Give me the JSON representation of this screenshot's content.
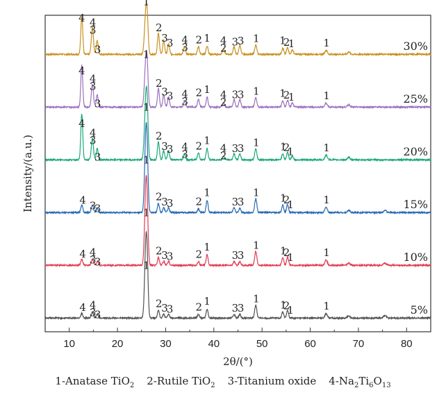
{
  "chart_data": {
    "type": "line",
    "title": "",
    "xlabel": "2θ/(°)",
    "ylabel": "Intensity/(a.u.)",
    "xlim": [
      5,
      85
    ],
    "x_ticks": [
      10,
      20,
      30,
      40,
      50,
      60,
      70,
      80
    ],
    "y_ticks_shown": false,
    "stacked_offset": true,
    "series": [
      {
        "name": "30%",
        "color": "#c8901e",
        "baseline": 0.06,
        "scale": 1.0,
        "peaks": [
          [
            12.6,
            0.5,
            0.2
          ],
          [
            14.8,
            0.35,
            0.22
          ],
          [
            15.8,
            0.18,
            0.2
          ],
          [
            25.9,
            0.55,
            0.28
          ],
          [
            26.2,
            0.25,
            0.2
          ],
          [
            28.5,
            0.28,
            0.2
          ],
          [
            29.6,
            0.18,
            0.2
          ],
          [
            30.6,
            0.14,
            0.2
          ],
          [
            33.9,
            0.1,
            0.2
          ],
          [
            36.8,
            0.1,
            0.2
          ],
          [
            38.6,
            0.11,
            0.2
          ],
          [
            42.0,
            0.08,
            0.2
          ],
          [
            44.2,
            0.1,
            0.2
          ],
          [
            45.4,
            0.12,
            0.2
          ],
          [
            48.7,
            0.12,
            0.22
          ],
          [
            54.3,
            0.08,
            0.2
          ],
          [
            55.3,
            0.09,
            0.2
          ],
          [
            56.3,
            0.06,
            0.2
          ],
          [
            63.3,
            0.05,
            0.25
          ],
          [
            68.0,
            0.03,
            0.25
          ]
        ]
      },
      {
        "name": "25%",
        "color": "#9b6fbf",
        "baseline": 0.06,
        "scale": 1.0,
        "peaks": [
          [
            12.6,
            0.55,
            0.2
          ],
          [
            14.8,
            0.3,
            0.22
          ],
          [
            15.8,
            0.16,
            0.2
          ],
          [
            25.9,
            0.6,
            0.28
          ],
          [
            26.2,
            0.28,
            0.2
          ],
          [
            28.5,
            0.24,
            0.2
          ],
          [
            29.6,
            0.16,
            0.2
          ],
          [
            30.6,
            0.13,
            0.2
          ],
          [
            33.9,
            0.08,
            0.2
          ],
          [
            36.8,
            0.1,
            0.2
          ],
          [
            38.6,
            0.13,
            0.2
          ],
          [
            42.0,
            0.06,
            0.2
          ],
          [
            44.2,
            0.1,
            0.2
          ],
          [
            45.4,
            0.1,
            0.2
          ],
          [
            48.7,
            0.12,
            0.22
          ],
          [
            54.3,
            0.08,
            0.2
          ],
          [
            55.3,
            0.09,
            0.2
          ],
          [
            56.3,
            0.05,
            0.2
          ],
          [
            63.3,
            0.05,
            0.25
          ],
          [
            68.0,
            0.03,
            0.25
          ]
        ]
      },
      {
        "name": "20%",
        "color": "#1aa878",
        "baseline": 0.06,
        "scale": 1.0,
        "peaks": [
          [
            12.6,
            0.6,
            0.2
          ],
          [
            14.8,
            0.28,
            0.22
          ],
          [
            15.8,
            0.15,
            0.2
          ],
          [
            25.9,
            0.8,
            0.28
          ],
          [
            26.2,
            0.35,
            0.2
          ],
          [
            28.5,
            0.24,
            0.2
          ],
          [
            29.6,
            0.12,
            0.2
          ],
          [
            30.6,
            0.12,
            0.2
          ],
          [
            33.9,
            0.08,
            0.2
          ],
          [
            36.8,
            0.09,
            0.2
          ],
          [
            38.6,
            0.15,
            0.2
          ],
          [
            42.0,
            0.05,
            0.2
          ],
          [
            44.2,
            0.08,
            0.2
          ],
          [
            45.4,
            0.08,
            0.2
          ],
          [
            48.7,
            0.14,
            0.22
          ],
          [
            54.3,
            0.08,
            0.2
          ],
          [
            55.3,
            0.1,
            0.2
          ],
          [
            56.3,
            0.05,
            0.2
          ],
          [
            63.3,
            0.06,
            0.25
          ],
          [
            68.0,
            0.03,
            0.25
          ]
        ]
      },
      {
        "name": "15%",
        "color": "#2468b4",
        "baseline": 0.06,
        "scale": 1.0,
        "peaks": [
          [
            12.6,
            0.1,
            0.2
          ],
          [
            14.8,
            0.1,
            0.22
          ],
          [
            15.8,
            0.06,
            0.2
          ],
          [
            25.9,
            1.0,
            0.26
          ],
          [
            26.2,
            0.4,
            0.2
          ],
          [
            28.5,
            0.12,
            0.2
          ],
          [
            29.6,
            0.06,
            0.2
          ],
          [
            30.6,
            0.06,
            0.2
          ],
          [
            36.8,
            0.05,
            0.2
          ],
          [
            38.6,
            0.16,
            0.2
          ],
          [
            44.2,
            0.06,
            0.2
          ],
          [
            45.4,
            0.06,
            0.2
          ],
          [
            48.7,
            0.18,
            0.22
          ],
          [
            54.3,
            0.1,
            0.2
          ],
          [
            55.3,
            0.11,
            0.2
          ],
          [
            63.3,
            0.07,
            0.25
          ],
          [
            68.0,
            0.03,
            0.25
          ],
          [
            75.5,
            0.03,
            0.3
          ]
        ]
      },
      {
        "name": "10%",
        "color": "#e23a50",
        "baseline": 0.06,
        "scale": 1.0,
        "peaks": [
          [
            12.6,
            0.08,
            0.2
          ],
          [
            14.8,
            0.08,
            0.22
          ],
          [
            15.8,
            0.05,
            0.2
          ],
          [
            25.9,
            1.0,
            0.26
          ],
          [
            26.2,
            0.4,
            0.2
          ],
          [
            28.5,
            0.1,
            0.2
          ],
          [
            29.6,
            0.05,
            0.2
          ],
          [
            30.6,
            0.05,
            0.2
          ],
          [
            36.8,
            0.05,
            0.2
          ],
          [
            38.6,
            0.14,
            0.2
          ],
          [
            44.2,
            0.05,
            0.2
          ],
          [
            45.4,
            0.05,
            0.2
          ],
          [
            48.7,
            0.18,
            0.22
          ],
          [
            54.3,
            0.1,
            0.2
          ],
          [
            55.3,
            0.11,
            0.2
          ],
          [
            63.3,
            0.07,
            0.25
          ],
          [
            68.0,
            0.03,
            0.25
          ],
          [
            75.5,
            0.03,
            0.3
          ]
        ]
      },
      {
        "name": "5%",
        "color": "#505050",
        "baseline": 0.06,
        "scale": 1.0,
        "peaks": [
          [
            12.6,
            0.06,
            0.2
          ],
          [
            14.8,
            0.08,
            0.22
          ],
          [
            15.8,
            0.05,
            0.2
          ],
          [
            25.9,
            0.95,
            0.26
          ],
          [
            26.2,
            0.4,
            0.2
          ],
          [
            28.5,
            0.1,
            0.2
          ],
          [
            29.6,
            0.05,
            0.2
          ],
          [
            30.6,
            0.05,
            0.2
          ],
          [
            36.8,
            0.05,
            0.2
          ],
          [
            38.6,
            0.12,
            0.2
          ],
          [
            44.2,
            0.05,
            0.2
          ],
          [
            45.4,
            0.05,
            0.2
          ],
          [
            48.7,
            0.17,
            0.22
          ],
          [
            54.3,
            0.08,
            0.2
          ],
          [
            55.3,
            0.1,
            0.2
          ],
          [
            63.3,
            0.06,
            0.25
          ],
          [
            68.0,
            0.03,
            0.25
          ],
          [
            75.5,
            0.03,
            0.3
          ]
        ]
      }
    ],
    "peak_annotations": [
      {
        "series": "30%",
        "labels": [
          {
            "x": 12.6,
            "text": "4"
          },
          {
            "x": 14.9,
            "text": "4"
          },
          {
            "x": 14.9,
            "text": "3",
            "row": 1
          },
          {
            "x": 15.9,
            "text": "3",
            "row": 2
          },
          {
            "x": 26.0,
            "text": "1"
          },
          {
            "x": 28.6,
            "text": "2"
          },
          {
            "x": 29.8,
            "text": "3"
          },
          {
            "x": 30.9,
            "text": "3"
          },
          {
            "x": 34.0,
            "text": "4"
          },
          {
            "x": 34.0,
            "text": "3",
            "row": 1
          },
          {
            "x": 36.9,
            "text": "2"
          },
          {
            "x": 38.6,
            "text": "1"
          },
          {
            "x": 42.0,
            "text": "4"
          },
          {
            "x": 42.0,
            "text": "2",
            "row": 1
          },
          {
            "x": 44.4,
            "text": "3"
          },
          {
            "x": 45.6,
            "text": "3"
          },
          {
            "x": 48.8,
            "text": "1"
          },
          {
            "x": 54.3,
            "text": "1"
          },
          {
            "x": 55.1,
            "text": "2"
          },
          {
            "x": 56.1,
            "text": "1"
          },
          {
            "x": 63.4,
            "text": "1"
          }
        ]
      },
      {
        "series": "25%",
        "labels": [
          {
            "x": 12.6,
            "text": "4"
          },
          {
            "x": 14.9,
            "text": "4"
          },
          {
            "x": 14.9,
            "text": "3",
            "row": 1
          },
          {
            "x": 15.9,
            "text": "3",
            "row": 2
          },
          {
            "x": 26.0,
            "text": "1"
          },
          {
            "x": 28.6,
            "text": "2"
          },
          {
            "x": 29.8,
            "text": "3"
          },
          {
            "x": 30.9,
            "text": "3"
          },
          {
            "x": 34.0,
            "text": "4"
          },
          {
            "x": 34.0,
            "text": "3",
            "row": 1
          },
          {
            "x": 36.9,
            "text": "2"
          },
          {
            "x": 38.6,
            "text": "1"
          },
          {
            "x": 42.0,
            "text": "4"
          },
          {
            "x": 42.0,
            "text": "2",
            "row": 1
          },
          {
            "x": 44.4,
            "text": "3"
          },
          {
            "x": 45.6,
            "text": "3"
          },
          {
            "x": 48.8,
            "text": "1"
          },
          {
            "x": 54.3,
            "text": "1"
          },
          {
            "x": 55.1,
            "text": "2"
          },
          {
            "x": 56.1,
            "text": "1"
          },
          {
            "x": 63.4,
            "text": "1"
          }
        ]
      },
      {
        "series": "20%",
        "labels": [
          {
            "x": 12.6,
            "text": "4"
          },
          {
            "x": 14.9,
            "text": "4"
          },
          {
            "x": 14.9,
            "text": "3",
            "row": 1
          },
          {
            "x": 15.9,
            "text": "3",
            "row": 2
          },
          {
            "x": 26.0,
            "text": "1"
          },
          {
            "x": 28.6,
            "text": "2"
          },
          {
            "x": 29.8,
            "text": "3"
          },
          {
            "x": 30.9,
            "text": "3"
          },
          {
            "x": 34.0,
            "text": "4"
          },
          {
            "x": 34.0,
            "text": "3",
            "row": 1
          },
          {
            "x": 36.9,
            "text": "2"
          },
          {
            "x": 38.6,
            "text": "1"
          },
          {
            "x": 42.0,
            "text": "4"
          },
          {
            "x": 42.0,
            "text": "2",
            "row": 1
          },
          {
            "x": 44.4,
            "text": "3"
          },
          {
            "x": 45.6,
            "text": "3"
          },
          {
            "x": 48.8,
            "text": "1"
          },
          {
            "x": 54.4,
            "text": "1"
          },
          {
            "x": 55.1,
            "text": "2"
          },
          {
            "x": 55.9,
            "text": "1"
          },
          {
            "x": 63.4,
            "text": "1"
          }
        ]
      },
      {
        "series": "15%",
        "labels": [
          {
            "x": 12.8,
            "text": "4"
          },
          {
            "x": 14.9,
            "text": "3",
            "row": 1
          },
          {
            "x": 15.9,
            "text": "3",
            "row": 1
          },
          {
            "x": 26.0,
            "text": "1"
          },
          {
            "x": 28.6,
            "text": "2"
          },
          {
            "x": 29.8,
            "text": "3"
          },
          {
            "x": 30.9,
            "text": "3"
          },
          {
            "x": 36.9,
            "text": "2"
          },
          {
            "x": 38.6,
            "text": "1"
          },
          {
            "x": 44.4,
            "text": "3"
          },
          {
            "x": 45.6,
            "text": "3"
          },
          {
            "x": 48.8,
            "text": "1"
          },
          {
            "x": 54.4,
            "text": "1"
          },
          {
            "x": 55.1,
            "text": "2"
          },
          {
            "x": 55.9,
            "text": "1"
          },
          {
            "x": 63.4,
            "text": "1"
          }
        ]
      },
      {
        "series": "10%",
        "labels": [
          {
            "x": 12.8,
            "text": "4"
          },
          {
            "x": 14.9,
            "text": "4"
          },
          {
            "x": 14.9,
            "text": "3",
            "row": 1
          },
          {
            "x": 15.9,
            "text": "3",
            "row": 1
          },
          {
            "x": 26.0,
            "text": "1"
          },
          {
            "x": 28.6,
            "text": "2"
          },
          {
            "x": 29.8,
            "text": "3"
          },
          {
            "x": 30.9,
            "text": "3"
          },
          {
            "x": 36.9,
            "text": "2"
          },
          {
            "x": 38.6,
            "text": "1"
          },
          {
            "x": 44.4,
            "text": "3"
          },
          {
            "x": 45.6,
            "text": "3"
          },
          {
            "x": 48.8,
            "text": "1"
          },
          {
            "x": 54.4,
            "text": "1"
          },
          {
            "x": 55.1,
            "text": "2"
          },
          {
            "x": 55.9,
            "text": "1"
          },
          {
            "x": 63.4,
            "text": "1"
          }
        ]
      },
      {
        "series": "5%",
        "labels": [
          {
            "x": 12.8,
            "text": "4"
          },
          {
            "x": 14.9,
            "text": "4"
          },
          {
            "x": 14.9,
            "text": "3",
            "row": 1
          },
          {
            "x": 15.9,
            "text": "3",
            "row": 1
          },
          {
            "x": 26.0,
            "text": "1"
          },
          {
            "x": 28.6,
            "text": "2"
          },
          {
            "x": 29.8,
            "text": "3"
          },
          {
            "x": 30.9,
            "text": "3"
          },
          {
            "x": 36.9,
            "text": "2"
          },
          {
            "x": 38.6,
            "text": "1"
          },
          {
            "x": 44.4,
            "text": "3"
          },
          {
            "x": 45.6,
            "text": "3"
          },
          {
            "x": 48.8,
            "text": "1"
          },
          {
            "x": 54.4,
            "text": "1"
          },
          {
            "x": 55.1,
            "text": "2"
          },
          {
            "x": 55.9,
            "text": "1"
          },
          {
            "x": 63.4,
            "text": "1"
          }
        ]
      }
    ],
    "legend_entries": [
      {
        "text": "1-Anatase TiO",
        "sub": "2",
        "tail": ""
      },
      {
        "text": "2-Rutile TiO",
        "sub": "2",
        "tail": ""
      },
      {
        "text": "3-Titanium oxide",
        "sub": "",
        "tail": ""
      },
      {
        "text": "4-Na",
        "sub": "2",
        "tail": "Ti",
        "sub2": "6",
        "tail2": "O",
        "sub3": "13"
      }
    ]
  }
}
